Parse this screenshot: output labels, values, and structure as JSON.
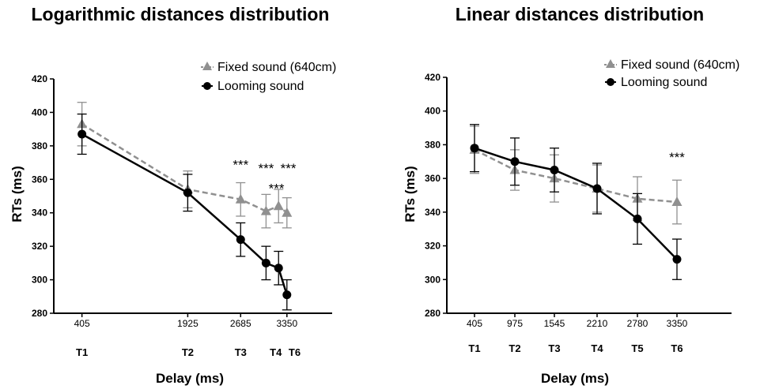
{
  "chart_data": [
    {
      "type": "line",
      "title": "Logarithmic distances distribution",
      "xlabel": "Delay (ms)",
      "ylabel": "RTs (ms)",
      "ylim": [
        280,
        420
      ],
      "yticks": [
        "280",
        "300",
        "320",
        "340",
        "360",
        "380",
        "400",
        "420"
      ],
      "xlim": [
        0,
        4000
      ],
      "xticks": [
        {
          "x": 405,
          "label": "405"
        },
        {
          "x": 1925,
          "label": "1925"
        },
        {
          "x": 2685,
          "label": "2685"
        },
        {
          "x": 3350,
          "label": "3350"
        }
      ],
      "sublabels": [
        {
          "x": 405,
          "label": "T1"
        },
        {
          "x": 1925,
          "label": "T2"
        },
        {
          "x": 2685,
          "label": "T3"
        },
        {
          "x": 3190,
          "label": "T4"
        },
        {
          "x": 3460,
          "label": "T6"
        }
      ],
      "legend_position": "top-right",
      "grid": false,
      "series": [
        {
          "name": "Fixed sound (640cm)",
          "marker": "triangle",
          "color": "#909090",
          "dashed": true,
          "points": [
            {
              "x": 405,
              "y": 393,
              "err": 13
            },
            {
              "x": 1925,
              "y": 354,
              "err": 11
            },
            {
              "x": 2685,
              "y": 348,
              "err": 10
            },
            {
              "x": 3050,
              "y": 341,
              "err": 10
            },
            {
              "x": 3230,
              "y": 344,
              "err": 10
            },
            {
              "x": 3350,
              "y": 340,
              "err": 9
            }
          ]
        },
        {
          "name": "Looming sound",
          "marker": "circle",
          "color": "#000000",
          "dashed": false,
          "points": [
            {
              "x": 405,
              "y": 387,
              "err": 12
            },
            {
              "x": 1925,
              "y": 352,
              "err": 11
            },
            {
              "x": 2685,
              "y": 324,
              "err": 10
            },
            {
              "x": 3050,
              "y": 310,
              "err": 10
            },
            {
              "x": 3230,
              "y": 307,
              "err": 10
            },
            {
              "x": 3350,
              "y": 291,
              "err": 9
            }
          ]
        }
      ],
      "annotations": [
        {
          "x": 2685,
          "y": 366,
          "text": "***"
        },
        {
          "x": 3050,
          "y": 364,
          "text": "***"
        },
        {
          "x": 3370,
          "y": 364,
          "text": "***"
        },
        {
          "x": 3200,
          "y": 352,
          "text": "***"
        }
      ]
    },
    {
      "type": "line",
      "title": "Linear distances distribution",
      "xlabel": "Delay (ms)",
      "ylabel": "RTs (ms)",
      "ylim": [
        280,
        420
      ],
      "yticks": [
        "280",
        "300",
        "320",
        "340",
        "360",
        "380",
        "400",
        "420"
      ],
      "xlim": [
        0,
        4000
      ],
      "xticks": [
        {
          "x": 405,
          "label": "405"
        },
        {
          "x": 975,
          "label": "975"
        },
        {
          "x": 1545,
          "label": "1545"
        },
        {
          "x": 2210,
          "label": "2210"
        },
        {
          "x": 2780,
          "label": "2780"
        },
        {
          "x": 3350,
          "label": "3350"
        }
      ],
      "sublabels": [
        {
          "x": 405,
          "label": "T1"
        },
        {
          "x": 975,
          "label": "T2"
        },
        {
          "x": 1545,
          "label": "T3"
        },
        {
          "x": 2210,
          "label": "T4"
        },
        {
          "x": 2780,
          "label": "T5"
        },
        {
          "x": 3350,
          "label": "T6"
        }
      ],
      "legend_position": "top-right",
      "grid": false,
      "series": [
        {
          "name": "Fixed sound (640cm)",
          "marker": "triangle",
          "color": "#909090",
          "dashed": true,
          "points": [
            {
              "x": 405,
              "y": 377,
              "err": 14
            },
            {
              "x": 975,
              "y": 365,
              "err": 12
            },
            {
              "x": 1545,
              "y": 360,
              "err": 14
            },
            {
              "x": 2210,
              "y": 354,
              "err": 14
            },
            {
              "x": 2780,
              "y": 348,
              "err": 13
            },
            {
              "x": 3350,
              "y": 346,
              "err": 13
            }
          ]
        },
        {
          "name": "Looming sound",
          "marker": "circle",
          "color": "#000000",
          "dashed": false,
          "points": [
            {
              "x": 405,
              "y": 378,
              "err": 14
            },
            {
              "x": 975,
              "y": 370,
              "err": 14
            },
            {
              "x": 1545,
              "y": 365,
              "err": 13
            },
            {
              "x": 2210,
              "y": 354,
              "err": 15
            },
            {
              "x": 2780,
              "y": 336,
              "err": 15
            },
            {
              "x": 3350,
              "y": 312,
              "err": 12
            }
          ]
        }
      ],
      "annotations": [
        {
          "x": 3350,
          "y": 370,
          "text": "***"
        }
      ]
    }
  ]
}
